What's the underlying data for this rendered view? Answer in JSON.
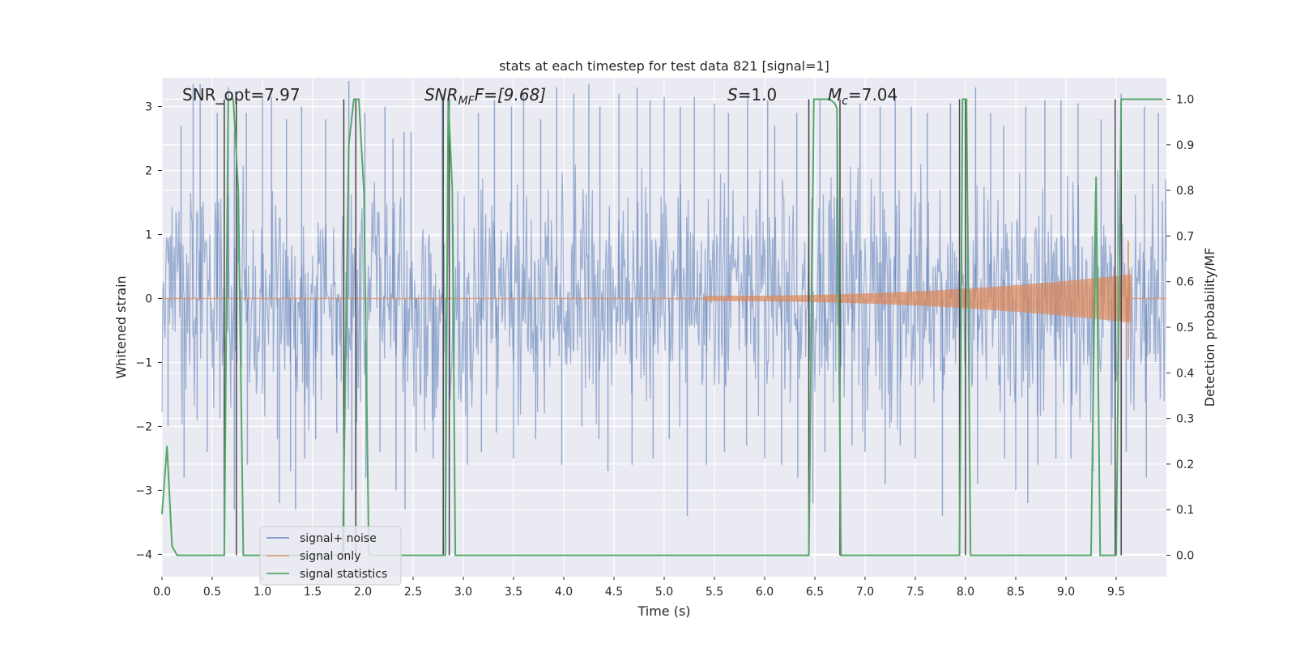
{
  "chart_data": {
    "type": "line",
    "title": "stats at each timestep for test data 821 [signal=1]",
    "xlabel": "Time (s)",
    "ylabel_left": "Whitened strain",
    "ylabel_right": "Detection probability/MF",
    "xlim": [
      0.0,
      10.0
    ],
    "ylim_left": [
      -4.35,
      3.45
    ],
    "ylim_right": [
      -0.047,
      1.047
    ],
    "x_ticks": [
      0.0,
      0.5,
      1.0,
      1.5,
      2.0,
      2.5,
      3.0,
      3.5,
      4.0,
      4.5,
      5.0,
      5.5,
      6.0,
      6.5,
      7.0,
      7.5,
      8.0,
      8.5,
      9.0,
      9.5
    ],
    "x_tick_labels": [
      "0.0",
      "0.5",
      "1.0",
      "1.5",
      "2.0",
      "2.5",
      "3.0",
      "3.5",
      "4.0",
      "4.5",
      "5.0",
      "5.5",
      "6.0",
      "6.5",
      "7.0",
      "7.5",
      "8.0",
      "8.5",
      "9.0",
      "9.5"
    ],
    "y_ticks_left": [
      -4,
      -3,
      -2,
      -1,
      0,
      1,
      2,
      3
    ],
    "y_tick_labels_left": [
      "−4",
      "−3",
      "−2",
      "−1",
      "0",
      "1",
      "2",
      "3"
    ],
    "y_ticks_right": [
      0.0,
      0.1,
      0.2,
      0.3,
      0.4,
      0.5,
      0.6,
      0.7,
      0.8,
      0.9,
      1.0
    ],
    "y_tick_labels_right": [
      "0.0",
      "0.1",
      "0.2",
      "0.3",
      "0.4",
      "0.5",
      "0.6",
      "0.7",
      "0.8",
      "0.9",
      "1.0"
    ],
    "grid": true,
    "legend_position": "lower-left",
    "annotations": {
      "snr_opt": "SNR_opt=7.97",
      "snr_mf_name": "SNR",
      "snr_mf_sub": "MF",
      "snr_mf_rest": "F=[9.68]",
      "s_name": "S",
      "s_rest": "=1.0",
      "mc_name": "M",
      "mc_sub": "c",
      "mc_rest": "=7.04"
    },
    "series": [
      {
        "name": "signal+ noise",
        "color": "#4c72b0",
        "axis": "left",
        "kind": "noise-band",
        "core_amplitude": 1.25,
        "spike_max": 3.4,
        "spike_min": -3.5,
        "spikes": [
          [
            0.19,
            2.7
          ],
          [
            0.31,
            3.35
          ],
          [
            0.38,
            3.35
          ],
          [
            0.55,
            2.9
          ],
          [
            0.66,
            3.3
          ],
          [
            0.72,
            2.6
          ],
          [
            0.84,
            2.9
          ],
          [
            1.0,
            3.2
          ],
          [
            1.09,
            3.15
          ],
          [
            1.24,
            2.8
          ],
          [
            1.39,
            3.0
          ],
          [
            1.63,
            2.8
          ],
          [
            1.86,
            3.4
          ],
          [
            2.02,
            2.9
          ],
          [
            2.22,
            3.0
          ],
          [
            2.3,
            2.5
          ],
          [
            2.41,
            2.6
          ],
          [
            2.48,
            2.6
          ],
          [
            2.79,
            3.2
          ],
          [
            3.15,
            2.9
          ],
          [
            3.31,
            3.1
          ],
          [
            3.48,
            3.0
          ],
          [
            3.6,
            3.2
          ],
          [
            3.77,
            2.8
          ],
          [
            3.93,
            3.3
          ],
          [
            4.1,
            3.2
          ],
          [
            4.25,
            3.35
          ],
          [
            4.36,
            3.0
          ],
          [
            4.55,
            3.2
          ],
          [
            4.73,
            3.3
          ],
          [
            4.86,
            3.1
          ],
          [
            5.0,
            3.15
          ],
          [
            5.16,
            3.0
          ],
          [
            5.3,
            3.15
          ],
          [
            5.5,
            3.05
          ],
          [
            5.64,
            2.9
          ],
          [
            5.83,
            3.2
          ],
          [
            6.03,
            3.1
          ],
          [
            6.1,
            2.7
          ],
          [
            6.32,
            2.9
          ],
          [
            6.55,
            3.1
          ],
          [
            6.72,
            2.9
          ],
          [
            6.95,
            3.05
          ],
          [
            7.15,
            3.0
          ],
          [
            7.3,
            3.2
          ],
          [
            7.46,
            3.0
          ],
          [
            7.62,
            2.9
          ],
          [
            7.85,
            3.05
          ],
          [
            8.1,
            3.3
          ],
          [
            8.25,
            2.9
          ],
          [
            8.38,
            2.7
          ],
          [
            8.6,
            3.0
          ],
          [
            8.79,
            3.1
          ],
          [
            8.95,
            3.1
          ],
          [
            9.12,
            3.05
          ],
          [
            9.35,
            2.8
          ],
          [
            9.55,
            3.2
          ],
          [
            9.78,
            3.0
          ],
          [
            9.92,
            2.9
          ],
          [
            0.06,
            -2.0
          ],
          [
            0.22,
            -2.8
          ],
          [
            0.35,
            -1.9
          ],
          [
            0.45,
            -2.4
          ],
          [
            0.72,
            -3.3
          ],
          [
            0.85,
            -2.6
          ],
          [
            1.15,
            -2.2
          ],
          [
            1.17,
            -3.2
          ],
          [
            1.28,
            -2.7
          ],
          [
            1.33,
            -3.3
          ],
          [
            1.42,
            -2.5
          ],
          [
            1.53,
            -2.2
          ],
          [
            1.74,
            -2.1
          ],
          [
            1.89,
            -3.0
          ],
          [
            2.03,
            -2.8
          ],
          [
            2.17,
            -2.4
          ],
          [
            2.33,
            -3.0
          ],
          [
            2.42,
            -3.3
          ],
          [
            2.53,
            -2.4
          ],
          [
            2.7,
            -2.5
          ],
          [
            2.82,
            -3.4
          ],
          [
            3.04,
            -2.6
          ],
          [
            3.18,
            -2.4
          ],
          [
            3.33,
            -2.1
          ],
          [
            3.5,
            -2.5
          ],
          [
            3.72,
            -2.2
          ],
          [
            3.98,
            -2.6
          ],
          [
            4.18,
            -2.0
          ],
          [
            4.35,
            -2.2
          ],
          [
            4.44,
            -2.7
          ],
          [
            4.68,
            -2.6
          ],
          [
            4.89,
            -2.5
          ],
          [
            5.05,
            -2.2
          ],
          [
            5.23,
            -3.4
          ],
          [
            5.42,
            -2.6
          ],
          [
            5.6,
            -2.4
          ],
          [
            5.82,
            -2.3
          ],
          [
            6.0,
            -2.5
          ],
          [
            6.17,
            -2.6
          ],
          [
            6.33,
            -2.8
          ],
          [
            6.48,
            -3.2
          ],
          [
            6.6,
            -2.4
          ],
          [
            6.87,
            -2.3
          ],
          [
            7.0,
            -2.4
          ],
          [
            7.2,
            -2.9
          ],
          [
            7.35,
            -2.3
          ],
          [
            7.5,
            -2.5
          ],
          [
            7.77,
            -3.4
          ],
          [
            7.95,
            -2.1
          ],
          [
            8.12,
            -2.9
          ],
          [
            8.39,
            -2.5
          ],
          [
            8.5,
            -3.0
          ],
          [
            8.62,
            -3.2
          ],
          [
            8.72,
            -2.6
          ],
          [
            8.9,
            -2.5
          ],
          [
            9.05,
            -2.5
          ],
          [
            9.27,
            -2.7
          ],
          [
            9.45,
            -2.6
          ],
          [
            9.6,
            -2.4
          ],
          [
            9.8,
            -2.8
          ]
        ]
      },
      {
        "name": "signal only",
        "color": "#dd8452",
        "axis": "left",
        "kind": "chirp",
        "start": 5.4,
        "merger": 9.65,
        "peak": 0.9,
        "min": -0.95
      },
      {
        "name": "signal statistics",
        "color": "#55a868",
        "axis": "right",
        "kind": "line",
        "x": [
          0.0,
          0.05,
          0.1,
          0.15,
          0.2,
          0.25,
          0.3,
          0.35,
          0.4,
          0.45,
          0.5,
          0.55,
          0.6,
          0.62,
          0.66,
          0.71,
          0.76,
          0.81,
          0.86,
          0.91,
          0.96,
          1.0,
          1.5,
          1.75,
          1.8,
          1.86,
          1.91,
          1.96,
          2.01,
          2.06,
          2.11,
          2.5,
          2.82,
          2.85,
          2.89,
          2.92,
          2.95,
          3.0,
          3.5,
          4.0,
          5.0,
          6.0,
          6.44,
          6.49,
          6.54,
          6.6,
          6.65,
          6.7,
          6.72,
          6.76,
          6.8,
          7.0,
          7.5,
          7.94,
          7.97,
          8.01,
          8.05,
          8.5,
          9.0,
          9.25,
          9.3,
          9.34,
          9.38,
          9.45,
          9.5,
          9.55,
          9.59,
          9.64,
          9.7,
          9.8,
          9.96
        ],
        "y": [
          0.09,
          0.24,
          0.02,
          0.0,
          0.0,
          0.0,
          0.0,
          0.0,
          0.0,
          0.0,
          0.0,
          0.0,
          0.0,
          0.0,
          1.0,
          1.0,
          0.8,
          0.0,
          0.0,
          0.0,
          0.0,
          0.0,
          0.0,
          0.0,
          0.01,
          0.9,
          1.0,
          1.0,
          0.8,
          0.0,
          0.0,
          0.0,
          0.0,
          1.0,
          0.8,
          0.0,
          0.0,
          0.0,
          0.0,
          0.0,
          0.0,
          0.0,
          0.0,
          1.0,
          1.0,
          1.0,
          1.0,
          0.99,
          0.98,
          0.0,
          0.0,
          0.0,
          0.0,
          0.0,
          1.0,
          1.0,
          0.0,
          0.0,
          0.0,
          0.0,
          0.83,
          0.0,
          0.0,
          0.0,
          0.0,
          1.0,
          1.0,
          1.0,
          1.0,
          1.0,
          1.0
        ]
      }
    ],
    "vertical_markers": {
      "color": "#444444",
      "positions": [
        0.62,
        0.74,
        1.81,
        1.93,
        2.8,
        2.86,
        6.44,
        6.75,
        7.94,
        8.0,
        9.49,
        9.55
      ]
    }
  }
}
